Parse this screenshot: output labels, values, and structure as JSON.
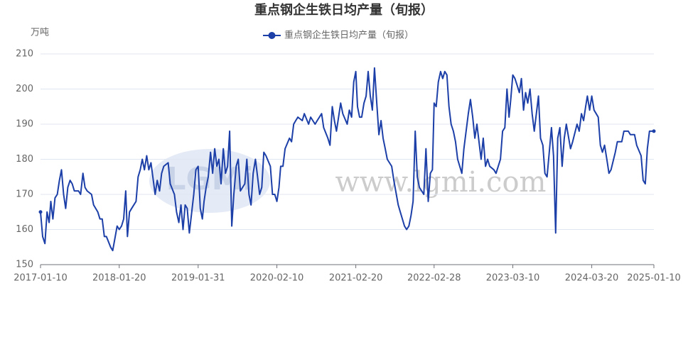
{
  "chart_data": {
    "type": "line",
    "title": "重点钢企生铁日均产量（旬报）",
    "y_label": "万吨",
    "watermark": "www.lgmi.com",
    "logo": "LGMi",
    "ylim": [
      150,
      210
    ],
    "yticks": [
      150,
      160,
      170,
      180,
      190,
      200,
      210
    ],
    "grid": true,
    "legend": "top",
    "xlim": [
      "2017-01-10",
      "2025-01-10"
    ],
    "xticks": [
      "2017-01-10",
      "2018-01-20",
      "2019-01-31",
      "2020-02-10",
      "2021-02-20",
      "2022-02-28",
      "2023-03-10",
      "2024-03-20",
      "2025-01-10"
    ],
    "x": [
      "2017-01-10",
      "2017-01-20",
      "2017-01-31",
      "2017-02-10",
      "2017-02-20",
      "2017-02-28",
      "2017-03-10",
      "2017-03-20",
      "2017-03-31",
      "2017-04-10",
      "2017-04-20",
      "2017-04-30",
      "2017-05-10",
      "2017-05-20",
      "2017-05-31",
      "2017-06-10",
      "2017-06-20",
      "2017-07-10",
      "2017-07-20",
      "2017-07-31",
      "2017-08-10",
      "2017-08-20",
      "2017-09-10",
      "2017-09-20",
      "2017-10-10",
      "2017-10-20",
      "2017-10-31",
      "2017-11-10",
      "2017-11-20",
      "2017-12-10",
      "2017-12-20",
      "2018-01-10",
      "2018-01-20",
      "2018-01-31",
      "2018-02-10",
      "2018-02-20",
      "2018-02-28",
      "2018-03-10",
      "2018-03-20",
      "2018-04-10",
      "2018-04-20",
      "2018-04-30",
      "2018-05-10",
      "2018-05-20",
      "2018-05-31",
      "2018-06-10",
      "2018-06-20",
      "2018-07-10",
      "2018-07-20",
      "2018-07-31",
      "2018-08-10",
      "2018-08-20",
      "2018-09-10",
      "2018-09-20",
      "2018-10-10",
      "2018-10-20",
      "2018-10-31",
      "2018-11-10",
      "2018-11-20",
      "2018-11-30",
      "2018-12-10",
      "2018-12-20",
      "2019-01-10",
      "2019-01-20",
      "2019-01-31",
      "2019-02-10",
      "2019-02-20",
      "2019-02-28",
      "2019-03-10",
      "2019-03-20",
      "2019-03-31",
      "2019-04-10",
      "2019-04-20",
      "2019-04-30",
      "2019-05-10",
      "2019-05-20",
      "2019-05-31",
      "2019-06-10",
      "2019-06-20",
      "2019-06-30",
      "2019-07-10",
      "2019-07-20",
      "2019-07-31",
      "2019-08-10",
      "2019-08-20",
      "2019-09-10",
      "2019-09-20",
      "2019-09-30",
      "2019-10-10",
      "2019-10-20",
      "2019-10-31",
      "2019-11-10",
      "2019-11-20",
      "2019-11-30",
      "2019-12-10",
      "2019-12-20",
      "2020-01-10",
      "2020-01-20",
      "2020-01-31",
      "2020-02-10",
      "2020-02-20",
      "2020-02-28",
      "2020-03-10",
      "2020-03-20",
      "2020-04-10",
      "2020-04-20",
      "2020-04-30",
      "2020-05-10",
      "2020-05-20",
      "2020-06-10",
      "2020-06-20",
      "2020-07-10",
      "2020-07-20",
      "2020-08-10",
      "2020-08-20",
      "2020-09-10",
      "2020-09-20",
      "2020-10-10",
      "2020-10-20",
      "2020-10-31",
      "2020-11-10",
      "2020-11-20",
      "2020-12-10",
      "2020-12-20",
      "2021-01-10",
      "2021-01-20",
      "2021-01-31",
      "2021-02-10",
      "2021-02-20",
      "2021-02-28",
      "2021-03-10",
      "2021-03-20",
      "2021-03-31",
      "2021-04-10",
      "2021-04-20",
      "2021-04-30",
      "2021-05-10",
      "2021-05-20",
      "2021-05-31",
      "2021-06-10",
      "2021-06-20",
      "2021-06-30",
      "2021-07-10",
      "2021-07-20",
      "2021-08-10",
      "2021-08-20",
      "2021-09-10",
      "2021-09-20",
      "2021-10-10",
      "2021-10-20",
      "2021-10-31",
      "2021-11-10",
      "2021-11-20",
      "2021-11-30",
      "2021-12-10",
      "2021-12-20",
      "2022-01-10",
      "2022-01-20",
      "2022-01-31",
      "2022-02-10",
      "2022-02-20",
      "2022-02-28",
      "2022-03-10",
      "2022-03-20",
      "2022-03-31",
      "2022-04-10",
      "2022-04-20",
      "2022-04-30",
      "2022-05-10",
      "2022-05-20",
      "2022-05-31",
      "2022-06-10",
      "2022-06-20",
      "2022-07-10",
      "2022-07-20",
      "2022-08-10",
      "2022-08-20",
      "2022-08-31",
      "2022-09-10",
      "2022-09-20",
      "2022-10-10",
      "2022-10-20",
      "2022-10-31",
      "2022-11-10",
      "2022-11-20",
      "2022-12-10",
      "2022-12-20",
      "2023-01-10",
      "2023-01-20",
      "2023-01-31",
      "2023-02-10",
      "2023-02-20",
      "2023-02-28",
      "2023-03-10",
      "2023-03-20",
      "2023-03-31",
      "2023-04-10",
      "2023-04-20",
      "2023-04-30",
      "2023-05-10",
      "2023-05-20",
      "2023-05-31",
      "2023-06-10",
      "2023-06-20",
      "2023-07-10",
      "2023-07-20",
      "2023-07-31",
      "2023-08-10",
      "2023-08-20",
      "2023-09-10",
      "2023-09-20",
      "2023-09-30",
      "2023-10-10",
      "2023-10-20",
      "2023-10-31",
      "2023-11-10",
      "2023-11-20",
      "2023-12-10",
      "2023-12-20",
      "2024-01-10",
      "2024-01-20",
      "2024-01-31",
      "2024-02-10",
      "2024-02-20",
      "2024-02-28",
      "2024-03-10",
      "2024-03-20",
      "2024-03-31",
      "2024-04-10",
      "2024-04-20",
      "2024-04-30",
      "2024-05-10",
      "2024-05-20",
      "2024-05-31",
      "2024-06-10",
      "2024-06-20",
      "2024-07-10",
      "2024-07-20",
      "2024-08-10",
      "2024-08-20",
      "2024-09-10",
      "2024-09-20",
      "2024-10-10",
      "2024-10-20",
      "2024-11-10",
      "2024-11-20",
      "2024-11-30",
      "2024-12-10",
      "2024-12-20",
      "2025-01-10"
    ],
    "series": [
      {
        "name": "重点钢企生铁日均产量（旬报）",
        "color": "#1c3fa8",
        "values": [
          165,
          158,
          156,
          165,
          162,
          168,
          163,
          169,
          170,
          174,
          177,
          170,
          166,
          172,
          174,
          173,
          171,
          171,
          170,
          176,
          172,
          171,
          170,
          167,
          165,
          163,
          163,
          158,
          158,
          155,
          154,
          161,
          160,
          161,
          163,
          171,
          158,
          165,
          166,
          168,
          175,
          177,
          180,
          177,
          181,
          177,
          179,
          170,
          174,
          171,
          176,
          178,
          179,
          173,
          170,
          165,
          162,
          167,
          160,
          167,
          166,
          159,
          170,
          177,
          178,
          166,
          163,
          168,
          172,
          175,
          182,
          176,
          183,
          178,
          180,
          173,
          183,
          176,
          178,
          188,
          161,
          170,
          178,
          180,
          171,
          173,
          180,
          170,
          167,
          176,
          180,
          175,
          170,
          172,
          182,
          181,
          178,
          170,
          170,
          168,
          172,
          178,
          178,
          183,
          186,
          185,
          190,
          191,
          192,
          191,
          193,
          190,
          192,
          190,
          191,
          193,
          189,
          186,
          184,
          195,
          191,
          188,
          196,
          193,
          190,
          194,
          192,
          202,
          205,
          195,
          192,
          192,
          196,
          198,
          205,
          198,
          194,
          206,
          196,
          187,
          191,
          186,
          183,
          180,
          178,
          174,
          167,
          165,
          161,
          160,
          161,
          164,
          168,
          188,
          175,
          172,
          170,
          183,
          168,
          176,
          177,
          196,
          195,
          202,
          205,
          203,
          205,
          204,
          195,
          190,
          188,
          185,
          180,
          176,
          183,
          193,
          197,
          192,
          186,
          190,
          180,
          186,
          178,
          180,
          178,
          177,
          176,
          180,
          188,
          189,
          200,
          192,
          197,
          204,
          203,
          201,
          199,
          203,
          194,
          199,
          196,
          200,
          193,
          188,
          198,
          186,
          184,
          176,
          175,
          189,
          181,
          159,
          186,
          189,
          178,
          186,
          190,
          183,
          185,
          190,
          188,
          193,
          191,
          195,
          198,
          194,
          198,
          194,
          193,
          192,
          184,
          182,
          184,
          180,
          176,
          177,
          182,
          185,
          185,
          188,
          188,
          187,
          187,
          184,
          181,
          174,
          173,
          183,
          188,
          188
        ]
      }
    ]
  }
}
